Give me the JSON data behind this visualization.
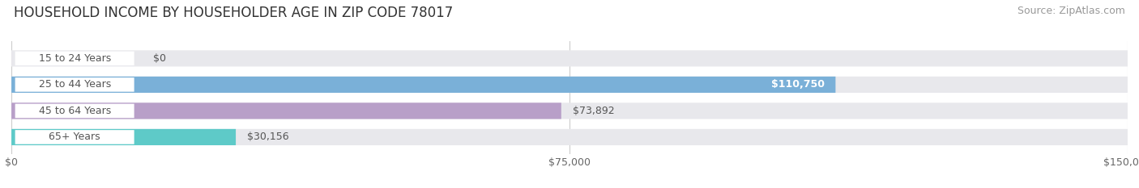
{
  "title": "HOUSEHOLD INCOME BY HOUSEHOLDER AGE IN ZIP CODE 78017",
  "source": "Source: ZipAtlas.com",
  "categories": [
    "15 to 24 Years",
    "25 to 44 Years",
    "45 to 64 Years",
    "65+ Years"
  ],
  "values": [
    0,
    110750,
    73892,
    30156
  ],
  "bar_colors": [
    "#f0a0a8",
    "#7ab0d8",
    "#b89fc8",
    "#5ecac8"
  ],
  "background_color": "#ffffff",
  "bar_bg_color": "#e8e8ec",
  "xlim": [
    0,
    150000
  ],
  "xticks": [
    0,
    75000,
    150000
  ],
  "xtick_labels": [
    "$0",
    "$75,000",
    "$150,000"
  ],
  "bar_height": 0.62,
  "value_labels": [
    "$0",
    "$110,750",
    "$73,892",
    "$30,156"
  ],
  "value_inside": [
    false,
    true,
    false,
    false
  ],
  "title_fontsize": 12,
  "source_fontsize": 9,
  "label_fontsize": 9,
  "tick_fontsize": 9,
  "grid_color": "#cccccc",
  "label_box_color": "#ffffff",
  "label_text_color": "#555555",
  "value_text_color_inside": "#ffffff",
  "value_text_color_outside": "#555555"
}
